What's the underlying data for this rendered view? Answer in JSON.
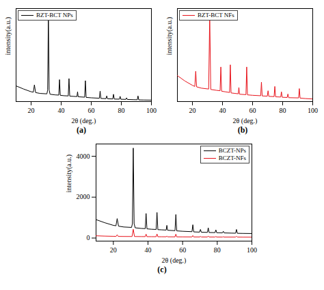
{
  "chart_data": [
    {
      "type": "line",
      "title": "(a)",
      "xlabel": "2θ (deg.)",
      "ylabel": "intensity(a.u.)",
      "xlim": [
        10,
        100
      ],
      "xticks": [
        20,
        40,
        60,
        80,
        100
      ],
      "ylim": [
        150,
        4600
      ],
      "tick_labels": "x",
      "legend": "top-left",
      "series": [
        {
          "name": "BZT-BCT NPs",
          "color": "#000000",
          "x": [
            10,
            15,
            20,
            21.5,
            22.2,
            23,
            26,
            30.5,
            31.0,
            31.5,
            32.0,
            32.6,
            36,
            38.4,
            38.9,
            39.4,
            42,
            44.7,
            45.2,
            45.7,
            48,
            50.5,
            50.9,
            51.3,
            55.6,
            56.1,
            56.6,
            60,
            65.4,
            65.9,
            66.4,
            69.8,
            70.3,
            70.8,
            74.3,
            74.8,
            75.3,
            78.7,
            79.2,
            79.7,
            83,
            83.5,
            84,
            88,
            90.6,
            91.1,
            91.6,
            95,
            100
          ],
          "values": [
            900,
            750,
            620,
            600,
            950,
            580,
            540,
            520,
            700,
            4400,
            700,
            500,
            470,
            460,
            1200,
            450,
            430,
            420,
            1250,
            410,
            400,
            390,
            620,
            380,
            360,
            1150,
            350,
            330,
            310,
            650,
            300,
            290,
            420,
            285,
            275,
            500,
            270,
            265,
            400,
            260,
            255,
            330,
            250,
            240,
            235,
            420,
            230,
            225,
            220
          ]
        }
      ]
    },
    {
      "type": "line",
      "title": "(b)",
      "xlabel": "2θ (deg.)",
      "ylabel": "intensity(a.u.)",
      "xlim": [
        10,
        100
      ],
      "xticks": [
        20,
        40,
        60,
        80,
        100
      ],
      "ylim": [
        30,
        460
      ],
      "tick_labels": "x",
      "legend": "top-left",
      "series": [
        {
          "name": "BZT-BCT NFs",
          "color": "#e8141c",
          "x": [
            10,
            15,
            20,
            21.6,
            22.2,
            22.8,
            26,
            30.8,
            31.5,
            32.2,
            36,
            38.4,
            38.9,
            39.4,
            42,
            44.7,
            45.2,
            45.7,
            48,
            50.5,
            50.9,
            51.3,
            55.6,
            56.1,
            56.6,
            60,
            65.4,
            65.9,
            66.4,
            69.8,
            70.3,
            70.8,
            74.3,
            74.8,
            75.3,
            78.7,
            79.2,
            79.7,
            83,
            83.5,
            84,
            90.6,
            91.1,
            91.6,
            95,
            100
          ],
          "values": [
            150,
            125,
            105,
            100,
            170,
            98,
            92,
            88,
            430,
            86,
            82,
            80,
            190,
            78,
            75,
            72,
            200,
            70,
            68,
            66,
            95,
            64,
            62,
            190,
            61,
            59,
            57,
            120,
            56,
            55,
            80,
            54,
            53,
            100,
            52,
            51,
            75,
            50,
            49,
            65,
            48,
            47,
            90,
            46,
            44,
            42
          ]
        }
      ]
    },
    {
      "type": "line",
      "title": "(c)",
      "xlabel": "2θ (deg.)",
      "ylabel": "intensity(a.u.)",
      "xlim": [
        10,
        100
      ],
      "xticks": [
        20,
        40,
        60,
        80,
        100
      ],
      "ylim": [
        -150,
        4600
      ],
      "yticks": [
        0,
        2000,
        4000
      ],
      "legend": "top-right",
      "series": [
        {
          "name": "BCZT-NPs",
          "color": "#000000",
          "x": [
            10,
            15,
            20,
            21.5,
            22.2,
            23,
            26,
            30.5,
            31.0,
            31.5,
            32.0,
            32.6,
            36,
            38.4,
            38.9,
            39.4,
            42,
            44.7,
            45.2,
            45.7,
            48,
            50.5,
            50.9,
            51.3,
            55.6,
            56.1,
            56.6,
            60,
            65.4,
            65.9,
            66.4,
            69.8,
            70.3,
            70.8,
            74.3,
            74.8,
            75.3,
            78.7,
            79.2,
            79.7,
            83,
            83.5,
            84,
            88,
            90.6,
            91.1,
            91.6,
            95,
            100
          ],
          "values": [
            900,
            750,
            620,
            600,
            950,
            580,
            540,
            520,
            700,
            4400,
            700,
            500,
            470,
            460,
            1200,
            450,
            430,
            420,
            1250,
            410,
            400,
            390,
            620,
            380,
            360,
            1150,
            350,
            330,
            310,
            650,
            300,
            290,
            420,
            285,
            275,
            500,
            270,
            265,
            400,
            260,
            255,
            330,
            250,
            240,
            235,
            420,
            230,
            225,
            220
          ]
        },
        {
          "name": "BCZT-NFs",
          "color": "#e8141c",
          "x": [
            10,
            15,
            20,
            21.6,
            22.2,
            22.8,
            26,
            30.8,
            31.5,
            32.2,
            36,
            38.4,
            38.9,
            39.4,
            42,
            44.7,
            45.2,
            45.7,
            48,
            50.5,
            50.9,
            51.3,
            55.6,
            56.1,
            56.6,
            60,
            65.4,
            65.9,
            66.4,
            69.8,
            70.3,
            70.8,
            74.3,
            74.8,
            75.3,
            78.7,
            79.2,
            79.7,
            83,
            83.5,
            84,
            90.6,
            91.1,
            91.6,
            95,
            100
          ],
          "values": [
            110,
            95,
            85,
            82,
            160,
            80,
            77,
            75,
            430,
            75,
            72,
            70,
            190,
            68,
            67,
            66,
            200,
            64,
            63,
            62,
            95,
            60,
            58,
            190,
            57,
            56,
            54,
            120,
            53,
            52,
            80,
            51,
            50,
            100,
            50,
            49,
            75,
            48,
            47,
            65,
            46,
            46,
            90,
            45,
            43,
            42
          ]
        }
      ]
    }
  ]
}
